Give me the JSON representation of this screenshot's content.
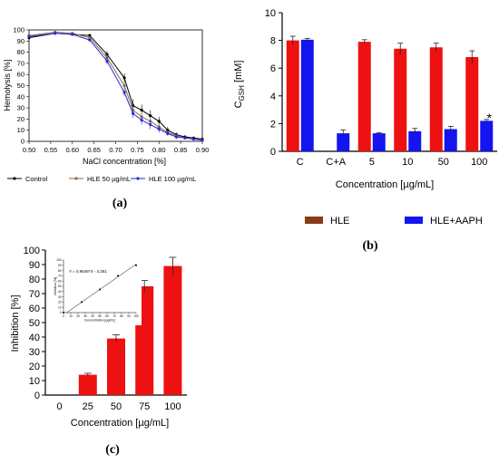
{
  "panel_labels": {
    "a": "(a)",
    "b": "(b)",
    "c": "(c)"
  },
  "chart_data": [
    {
      "id": "a",
      "type": "line",
      "title": "",
      "xlabel": "NaCl concentration [%]",
      "ylabel": "Hemolysis [%]",
      "xlim": [
        0.5,
        0.9
      ],
      "ylim": [
        0,
        100
      ],
      "x_ticks": [
        "0.50",
        "0.55",
        "0.60",
        "0.65",
        "0.70",
        "0.75",
        "0.80",
        "0.85",
        "0.90"
      ],
      "y_ticks": [
        "0",
        "10",
        "20",
        "30",
        "40",
        "50",
        "60",
        "70",
        "80",
        "90",
        "100"
      ],
      "legend_position": "bottom",
      "series": [
        {
          "name": "Control",
          "color": "#000000",
          "x": [
            0.5,
            0.56,
            0.6,
            0.64,
            0.68,
            0.72,
            0.74,
            0.76,
            0.78,
            0.8,
            0.82,
            0.84,
            0.86,
            0.88,
            0.9
          ],
          "y": [
            93,
            97,
            96,
            95,
            78,
            57,
            32,
            28,
            23,
            18,
            10,
            6,
            4,
            3,
            2
          ],
          "err": [
            2,
            1,
            1,
            1,
            3,
            4,
            6,
            5,
            5,
            4,
            3,
            2,
            1,
            1,
            1
          ]
        },
        {
          "name": "HLE 50 µg/mL",
          "color": "#8B6A50",
          "x": [
            0.5,
            0.56,
            0.6,
            0.64,
            0.68,
            0.72,
            0.74,
            0.76,
            0.78,
            0.8,
            0.82,
            0.84,
            0.86,
            0.88,
            0.9
          ],
          "y": [
            95,
            98,
            97,
            93,
            75,
            50,
            28,
            22,
            18,
            13,
            8,
            5,
            3,
            2,
            1
          ],
          "err": [
            1,
            1,
            1,
            1,
            3,
            3,
            5,
            4,
            4,
            3,
            2,
            2,
            1,
            1,
            1
          ]
        },
        {
          "name": "HLE 100 µg/mL",
          "color": "#2A2AD8",
          "x": [
            0.5,
            0.56,
            0.6,
            0.64,
            0.68,
            0.72,
            0.74,
            0.76,
            0.78,
            0.8,
            0.82,
            0.84,
            0.86,
            0.88,
            0.9
          ],
          "y": [
            94,
            97,
            96,
            91,
            72,
            44,
            25,
            19,
            15,
            11,
            7,
            4,
            3,
            2,
            1
          ],
          "err": [
            1,
            1,
            1,
            1,
            3,
            3,
            4,
            4,
            4,
            3,
            2,
            2,
            1,
            1,
            1
          ]
        }
      ]
    },
    {
      "id": "b",
      "type": "bar",
      "title": "",
      "xlabel": "Concentration [µg/mL]",
      "ylabel_main": "C",
      "ylabel_sub": "GSH",
      "ylabel_unit": " [mM]",
      "ylim": [
        0,
        10
      ],
      "y_ticks": [
        "0",
        "2",
        "4",
        "6",
        "8",
        "10"
      ],
      "categories": [
        "C",
        "C+A",
        "5",
        "10",
        "50",
        "100"
      ],
      "legend_position": "bottom",
      "series": [
        {
          "name": "HLE",
          "color": "#EE1111",
          "legend_color": "#8B3A1A",
          "values": [
            8.0,
            null,
            7.9,
            7.4,
            7.5,
            6.8
          ],
          "err": [
            0.3,
            null,
            0.15,
            0.4,
            0.3,
            0.45
          ]
        },
        {
          "name": "HLE+AAPH",
          "color": "#1414F0",
          "legend_color": "#1414F0",
          "values": [
            8.05,
            1.3,
            1.3,
            1.45,
            1.6,
            2.2
          ],
          "err": [
            0.1,
            0.25,
            0.05,
            0.2,
            0.2,
            0.1
          ]
        }
      ],
      "annotations": [
        {
          "category": "100",
          "series": "HLE+AAPH",
          "text": "*"
        }
      ]
    },
    {
      "id": "c",
      "type": "bar",
      "title": "",
      "xlabel": "Concentration [µg/mL]",
      "ylabel": "Inhibition [%]",
      "ylim": [
        0,
        100
      ],
      "y_ticks": [
        "0",
        "10",
        "20",
        "30",
        "40",
        "50",
        "60",
        "70",
        "80",
        "90",
        "100"
      ],
      "categories": [
        "0",
        "25",
        "50",
        "75",
        "100"
      ],
      "values": [
        0,
        14,
        39,
        75,
        89
      ],
      "err": [
        0,
        1,
        2.5,
        4,
        6
      ],
      "color": "#EE1111",
      "inset": {
        "type": "scatter",
        "equation": "Y = 0.9646*X - 4.261",
        "xlabel": "Concentration [µg/mL]",
        "ylabel": "Inhibition [%]",
        "xlim": [
          0,
          100
        ],
        "ylim": [
          0,
          100
        ],
        "x_ticks": [
          "0",
          "10",
          "20",
          "30",
          "40",
          "50",
          "60",
          "70",
          "80",
          "90",
          "100"
        ],
        "y_ticks": [
          "0",
          "10",
          "20",
          "30",
          "40",
          "50",
          "60",
          "70",
          "80",
          "90",
          "100"
        ],
        "x": [
          0,
          25,
          50,
          75,
          100
        ],
        "y": [
          0,
          20,
          44,
          70,
          90
        ]
      }
    }
  ]
}
